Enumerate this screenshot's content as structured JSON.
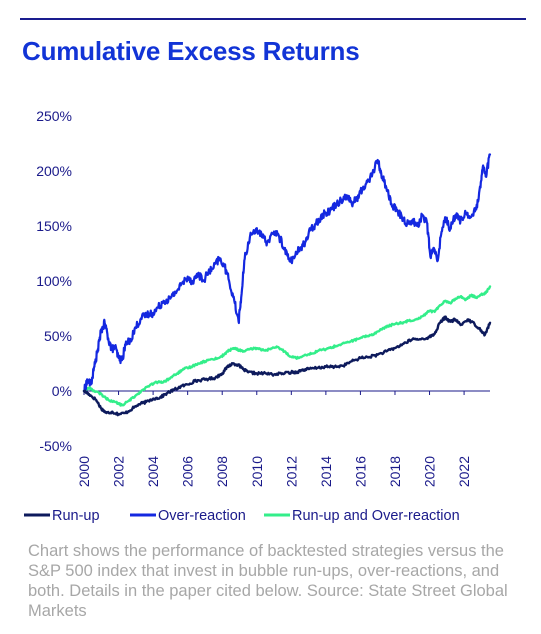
{
  "title": "Cumulative Excess Returns",
  "caption": "Chart shows the performance of backtested strategies versus the S&P 500 index that invest in bubble run-ups, over-reactions, and both. Details in the paper cited below. Source: State Street Global Markets",
  "colors": {
    "accent": "#1234d6",
    "rule": "#1a1d8f",
    "text": "#1a1a8a",
    "caption": "#a7a7a7"
  },
  "chart_data": {
    "type": "line",
    "title": "Cumulative Excess Returns",
    "xlabel": "",
    "ylabel": "",
    "xlim": [
      2000,
      2023.5
    ],
    "ylim": [
      -50,
      250
    ],
    "y_unit": "%",
    "grid": false,
    "legend_position": "bottom",
    "x_ticks": [
      "2000",
      "2002",
      "2004",
      "2006",
      "2008",
      "2010",
      "2012",
      "2014",
      "2016",
      "2018",
      "2020",
      "2022"
    ],
    "y_ticks": [
      "250%",
      "200%",
      "150%",
      "100%",
      "50%",
      "0%",
      "-50%"
    ],
    "series": [
      {
        "name": "Run-up",
        "color": "#0d1a5c",
        "points": [
          [
            2000.0,
            0
          ],
          [
            2000.3,
            -3
          ],
          [
            2000.7,
            -8
          ],
          [
            2001.0,
            -16
          ],
          [
            2001.3,
            -20
          ],
          [
            2001.6,
            -19
          ],
          [
            2002.0,
            -21
          ],
          [
            2002.4,
            -20
          ],
          [
            2002.8,
            -16
          ],
          [
            2003.2,
            -12
          ],
          [
            2003.6,
            -10
          ],
          [
            2004.0,
            -7
          ],
          [
            2004.4,
            -6
          ],
          [
            2004.8,
            -2
          ],
          [
            2005.2,
            1
          ],
          [
            2005.6,
            4
          ],
          [
            2006.0,
            6
          ],
          [
            2006.4,
            9
          ],
          [
            2006.8,
            10
          ],
          [
            2007.2,
            11
          ],
          [
            2007.6,
            12
          ],
          [
            2008.0,
            16
          ],
          [
            2008.3,
            22
          ],
          [
            2008.6,
            25
          ],
          [
            2008.9,
            24
          ],
          [
            2009.2,
            20
          ],
          [
            2009.5,
            17
          ],
          [
            2010.0,
            16
          ],
          [
            2010.5,
            16
          ],
          [
            2011.0,
            15
          ],
          [
            2011.5,
            16
          ],
          [
            2012.0,
            17
          ],
          [
            2012.3,
            17
          ],
          [
            2012.6,
            19
          ],
          [
            2013.0,
            20
          ],
          [
            2013.5,
            21
          ],
          [
            2014.0,
            22
          ],
          [
            2014.5,
            22
          ],
          [
            2015.0,
            23
          ],
          [
            2015.5,
            27
          ],
          [
            2016.0,
            30
          ],
          [
            2016.5,
            31
          ],
          [
            2017.0,
            33
          ],
          [
            2017.5,
            36
          ],
          [
            2018.0,
            39
          ],
          [
            2018.5,
            43
          ],
          [
            2019.0,
            47
          ],
          [
            2019.5,
            47
          ],
          [
            2020.0,
            49
          ],
          [
            2020.3,
            52
          ],
          [
            2020.6,
            62
          ],
          [
            2020.9,
            67
          ],
          [
            2021.2,
            63
          ],
          [
            2021.5,
            65
          ],
          [
            2021.8,
            60
          ],
          [
            2022.2,
            65
          ],
          [
            2022.6,
            61
          ],
          [
            2023.0,
            55
          ],
          [
            2023.2,
            51
          ],
          [
            2023.5,
            62
          ]
        ]
      },
      {
        "name": "Over-reaction",
        "color": "#1428e0",
        "points": [
          [
            2000.0,
            0
          ],
          [
            2000.2,
            10
          ],
          [
            2000.4,
            6
          ],
          [
            2000.6,
            22
          ],
          [
            2000.8,
            38
          ],
          [
            2001.0,
            55
          ],
          [
            2001.2,
            62
          ],
          [
            2001.4,
            48
          ],
          [
            2001.6,
            38
          ],
          [
            2001.8,
            40
          ],
          [
            2002.0,
            30
          ],
          [
            2002.2,
            28
          ],
          [
            2002.4,
            42
          ],
          [
            2002.7,
            47
          ],
          [
            2003.0,
            58
          ],
          [
            2003.3,
            66
          ],
          [
            2003.6,
            69
          ],
          [
            2004.0,
            71
          ],
          [
            2004.3,
            76
          ],
          [
            2004.6,
            82
          ],
          [
            2005.0,
            84
          ],
          [
            2005.3,
            90
          ],
          [
            2005.6,
            96
          ],
          [
            2006.0,
            104
          ],
          [
            2006.3,
            99
          ],
          [
            2006.6,
            107
          ],
          [
            2006.9,
            100
          ],
          [
            2007.2,
            108
          ],
          [
            2007.5,
            112
          ],
          [
            2007.8,
            120
          ],
          [
            2008.1,
            115
          ],
          [
            2008.4,
            100
          ],
          [
            2008.7,
            82
          ],
          [
            2008.95,
            63
          ],
          [
            2009.1,
            85
          ],
          [
            2009.3,
            120
          ],
          [
            2009.6,
            140
          ],
          [
            2010.0,
            148
          ],
          [
            2010.3,
            140
          ],
          [
            2010.6,
            135
          ],
          [
            2011.0,
            145
          ],
          [
            2011.3,
            140
          ],
          [
            2011.6,
            130
          ],
          [
            2011.9,
            118
          ],
          [
            2012.2,
            122
          ],
          [
            2012.5,
            130
          ],
          [
            2012.8,
            135
          ],
          [
            2013.1,
            146
          ],
          [
            2013.4,
            152
          ],
          [
            2013.7,
            158
          ],
          [
            2014.0,
            162
          ],
          [
            2014.3,
            165
          ],
          [
            2014.6,
            170
          ],
          [
            2014.9,
            174
          ],
          [
            2015.2,
            178
          ],
          [
            2015.5,
            170
          ],
          [
            2015.8,
            175
          ],
          [
            2016.1,
            183
          ],
          [
            2016.4,
            190
          ],
          [
            2016.7,
            198
          ],
          [
            2017.0,
            210
          ],
          [
            2017.2,
            198
          ],
          [
            2017.5,
            185
          ],
          [
            2017.8,
            170
          ],
          [
            2018.1,
            164
          ],
          [
            2018.4,
            158
          ],
          [
            2018.7,
            152
          ],
          [
            2019.0,
            155
          ],
          [
            2019.3,
            150
          ],
          [
            2019.6,
            160
          ],
          [
            2019.85,
            153
          ],
          [
            2020.05,
            122
          ],
          [
            2020.25,
            130
          ],
          [
            2020.45,
            118
          ],
          [
            2020.7,
            145
          ],
          [
            2020.9,
            158
          ],
          [
            2021.2,
            148
          ],
          [
            2021.5,
            160
          ],
          [
            2021.8,
            155
          ],
          [
            2022.1,
            162
          ],
          [
            2022.4,
            158
          ],
          [
            2022.7,
            165
          ],
          [
            2022.95,
            185
          ],
          [
            2023.1,
            205
          ],
          [
            2023.25,
            195
          ],
          [
            2023.5,
            215
          ]
        ]
      },
      {
        "name": "Run-up and Over-reaction",
        "color": "#33ee8a",
        "points": [
          [
            2000.0,
            0
          ],
          [
            2000.3,
            3
          ],
          [
            2000.6,
            0
          ],
          [
            2001.0,
            -3
          ],
          [
            2001.4,
            -8
          ],
          [
            2001.8,
            -10
          ],
          [
            2002.2,
            -13
          ],
          [
            2002.6,
            -9
          ],
          [
            2003.0,
            -4
          ],
          [
            2003.4,
            1
          ],
          [
            2003.8,
            5
          ],
          [
            2004.2,
            8
          ],
          [
            2004.6,
            8
          ],
          [
            2005.0,
            12
          ],
          [
            2005.4,
            16
          ],
          [
            2005.8,
            20
          ],
          [
            2006.2,
            22
          ],
          [
            2006.6,
            25
          ],
          [
            2007.0,
            27
          ],
          [
            2007.4,
            29
          ],
          [
            2007.8,
            30
          ],
          [
            2008.1,
            33
          ],
          [
            2008.4,
            37
          ],
          [
            2008.7,
            39
          ],
          [
            2009.0,
            37
          ],
          [
            2009.3,
            36
          ],
          [
            2009.6,
            38
          ],
          [
            2010.0,
            39
          ],
          [
            2010.4,
            37
          ],
          [
            2010.8,
            38
          ],
          [
            2011.2,
            40
          ],
          [
            2011.6,
            36
          ],
          [
            2012.0,
            31
          ],
          [
            2012.4,
            30
          ],
          [
            2012.8,
            33
          ],
          [
            2013.2,
            34
          ],
          [
            2013.6,
            37
          ],
          [
            2014.0,
            38
          ],
          [
            2014.4,
            40
          ],
          [
            2014.8,
            42
          ],
          [
            2015.2,
            44
          ],
          [
            2015.6,
            46
          ],
          [
            2016.0,
            48
          ],
          [
            2016.4,
            50
          ],
          [
            2016.8,
            52
          ],
          [
            2017.2,
            56
          ],
          [
            2017.6,
            59
          ],
          [
            2018.0,
            61
          ],
          [
            2018.4,
            62
          ],
          [
            2018.8,
            64
          ],
          [
            2019.2,
            65
          ],
          [
            2019.6,
            68
          ],
          [
            2020.0,
            73
          ],
          [
            2020.3,
            72
          ],
          [
            2020.6,
            78
          ],
          [
            2020.9,
            82
          ],
          [
            2021.2,
            80
          ],
          [
            2021.5,
            84
          ],
          [
            2021.8,
            86
          ],
          [
            2022.1,
            83
          ],
          [
            2022.4,
            87
          ],
          [
            2022.7,
            85
          ],
          [
            2023.0,
            88
          ],
          [
            2023.25,
            89
          ],
          [
            2023.5,
            95
          ]
        ]
      }
    ]
  }
}
